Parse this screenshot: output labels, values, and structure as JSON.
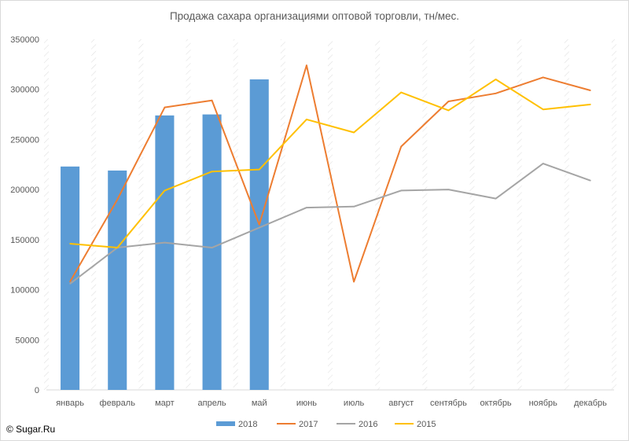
{
  "title": "Продажа сахара организациями оптовой торговли, тн/мес.",
  "credit": "© Sugar.Ru",
  "chart_data": {
    "type": "bar+line",
    "title": "Продажа сахара организациями оптовой торговли, тн/мес.",
    "categories": [
      "январь",
      "февраль",
      "март",
      "апрель",
      "май",
      "июнь",
      "июль",
      "август",
      "сентябрь",
      "октябрь",
      "ноябрь",
      "декабрь"
    ],
    "ylim": [
      0,
      350000
    ],
    "yticks": [
      0,
      50000,
      100000,
      150000,
      200000,
      250000,
      300000,
      350000
    ],
    "grid": "vertical-hatched",
    "legend_position": "bottom",
    "series": [
      {
        "name": "2018",
        "kind": "bar",
        "color": "#5b9bd5",
        "values": [
          223000,
          219000,
          274000,
          275000,
          310000,
          null,
          null,
          null,
          null,
          null,
          null,
          null
        ]
      },
      {
        "name": "2017",
        "kind": "line",
        "color": "#ed7d31",
        "values": [
          108000,
          190000,
          282000,
          289000,
          165000,
          324000,
          108000,
          243000,
          288000,
          296000,
          312000,
          299000
        ]
      },
      {
        "name": "2016",
        "kind": "line",
        "color": "#a5a5a5",
        "values": [
          106000,
          142000,
          147000,
          142000,
          162000,
          182000,
          183000,
          199000,
          200000,
          191000,
          226000,
          209000
        ]
      },
      {
        "name": "2015",
        "kind": "line",
        "color": "#ffc000",
        "values": [
          146000,
          142000,
          199000,
          218000,
          220000,
          270000,
          257000,
          297000,
          279000,
          310000,
          280000,
          285000
        ]
      }
    ]
  }
}
